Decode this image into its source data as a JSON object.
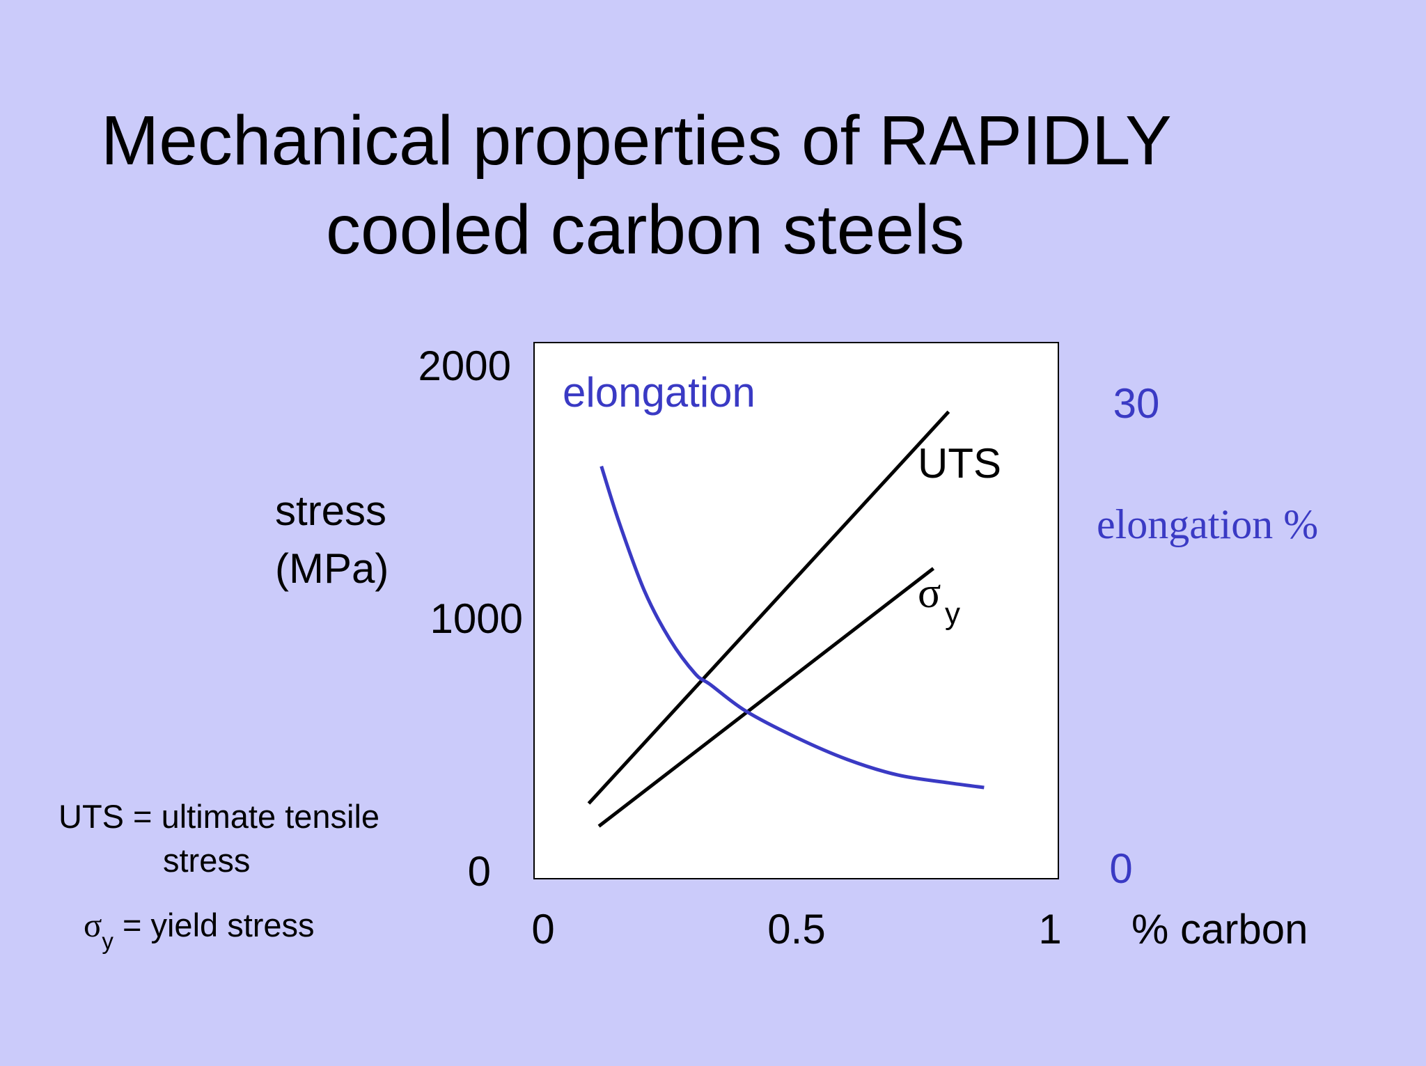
{
  "slide": {
    "title_line_1": "Mechanical properties of RAPIDLY",
    "title_line_2": "cooled carbon steels",
    "background_color": "#cbcbfa"
  },
  "legend_notes": {
    "uts_def_line_1": "UTS = ultimate tensile",
    "uts_def_line_2": "stress",
    "sigma_symbol": "σ",
    "sigma_sub": "y",
    "sigma_def_text": " = yield stress"
  },
  "chart_data": {
    "type": "line",
    "xlabel": "% carbon",
    "ylabel_line_1": "stress",
    "ylabel_line_2": "(MPa)",
    "y2label": "elongation %",
    "xlim": [
      0,
      1
    ],
    "ylim": [
      0,
      2000
    ],
    "y2lim": [
      0,
      30
    ],
    "x_ticks": [
      "0",
      "0.5",
      "1"
    ],
    "y_ticks": [
      "0",
      "1000",
      "2000"
    ],
    "y2_ticks": [
      "0",
      "30"
    ],
    "grid": false,
    "colors": {
      "stress": "#000000",
      "elongation": "#3a3ac4"
    },
    "series": [
      {
        "name": "UTS",
        "axis": "left",
        "x": [
          0.09,
          0.8
        ],
        "y": [
          270,
          1820
        ]
      },
      {
        "name": "σy",
        "axis": "left",
        "x": [
          0.11,
          0.77
        ],
        "y": [
          180,
          1200
        ]
      },
      {
        "name": "elongation",
        "axis": "right",
        "x": [
          0.115,
          0.15,
          0.2,
          0.25,
          0.3,
          0.33,
          0.4,
          0.5,
          0.6,
          0.7,
          0.8,
          0.87
        ],
        "y": [
          26,
          22.4,
          18,
          14.9,
          12.7,
          12.0,
          10.3,
          8.6,
          7.2,
          6.2,
          5.7,
          5.4
        ]
      }
    ],
    "labels": {
      "uts": "UTS",
      "sigma_symbol": "σ",
      "sigma_sub": "y",
      "elongation": "elongation"
    }
  }
}
